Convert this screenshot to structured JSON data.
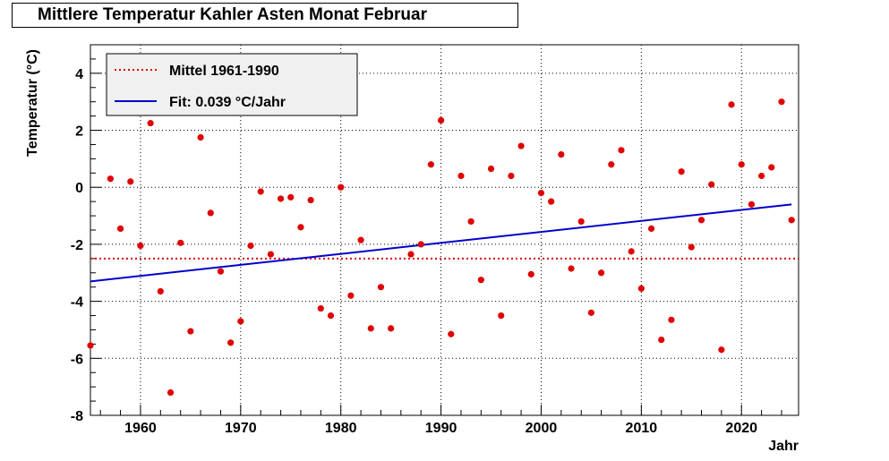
{
  "chart_data": {
    "type": "scatter",
    "title": "Mittlere Temperatur Kahler Asten Monat Februar",
    "xlabel": "Jahr",
    "ylabel": "Temperatur (°C)",
    "xlim": [
      1955,
      2025.7
    ],
    "ylim": [
      -8,
      5
    ],
    "x_ticks": [
      1960,
      1970,
      1980,
      1990,
      2000,
      2010,
      2020
    ],
    "y_ticks": [
      -8,
      -6,
      -4,
      -2,
      0,
      2,
      4
    ],
    "grid": true,
    "legend": {
      "placement": "top-left",
      "entries": [
        {
          "label": "Mittel 1961-1990",
          "style": "dotted",
          "color": "#e00000"
        },
        {
          "label": "Fit: 0.039 °C/Jahr",
          "style": "solid",
          "color": "#0000cc"
        }
      ]
    },
    "reference_line": {
      "name": "Mittel 1961-1990",
      "y": -2.5,
      "color": "#e00000"
    },
    "fit_line": {
      "name": "Fit: 0.039 °C/Jahr",
      "x": [
        1955,
        2025
      ],
      "y": [
        -3.3,
        -0.6
      ],
      "color": "#0000cc"
    },
    "points_color": "#e00000",
    "series": [
      {
        "x": [
          1955,
          1957,
          1958,
          1959,
          1960,
          1961,
          1962,
          1963,
          1964,
          1965,
          1966,
          1967,
          1968,
          1969,
          1970,
          1971,
          1972,
          1973,
          1974,
          1975,
          1976,
          1977,
          1978,
          1979,
          1980,
          1981,
          1982,
          1983,
          1984,
          1985,
          1987,
          1988,
          1989,
          1990,
          1991,
          1992,
          1993,
          1994,
          1995,
          1996,
          1997,
          1998,
          1999,
          2000,
          2001,
          2002,
          2003,
          2004,
          2005,
          2006,
          2007,
          2008,
          2009,
          2010,
          2011,
          2012,
          2013,
          2014,
          2015,
          2016,
          2017,
          2018,
          2019,
          2020,
          2021,
          2022,
          2023,
          2024,
          2025
        ],
        "y": [
          -5.55,
          0.3,
          -1.45,
          0.2,
          -2.05,
          2.25,
          -3.65,
          -7.2,
          -1.95,
          -5.05,
          1.75,
          -0.9,
          -2.95,
          -5.45,
          -4.7,
          -2.05,
          -0.15,
          -2.35,
          -0.4,
          -0.35,
          -1.4,
          -0.45,
          -4.25,
          -4.5,
          -0.0,
          -3.8,
          -1.85,
          -4.95,
          -3.5,
          -4.95,
          -2.35,
          -2.0,
          0.8,
          2.35,
          -5.15,
          0.4,
          -1.2,
          -3.25,
          0.65,
          -4.5,
          0.4,
          1.45,
          -3.05,
          -0.2,
          -0.5,
          1.15,
          -2.85,
          -1.2,
          -4.4,
          -3.0,
          0.8,
          1.3,
          -2.25,
          -3.55,
          -1.45,
          -5.35,
          -4.65,
          0.55,
          -2.1,
          -1.15,
          0.1,
          -5.7,
          2.9,
          0.8,
          -0.6,
          0.4,
          0.7,
          3.0,
          -1.15
        ]
      }
    ]
  }
}
